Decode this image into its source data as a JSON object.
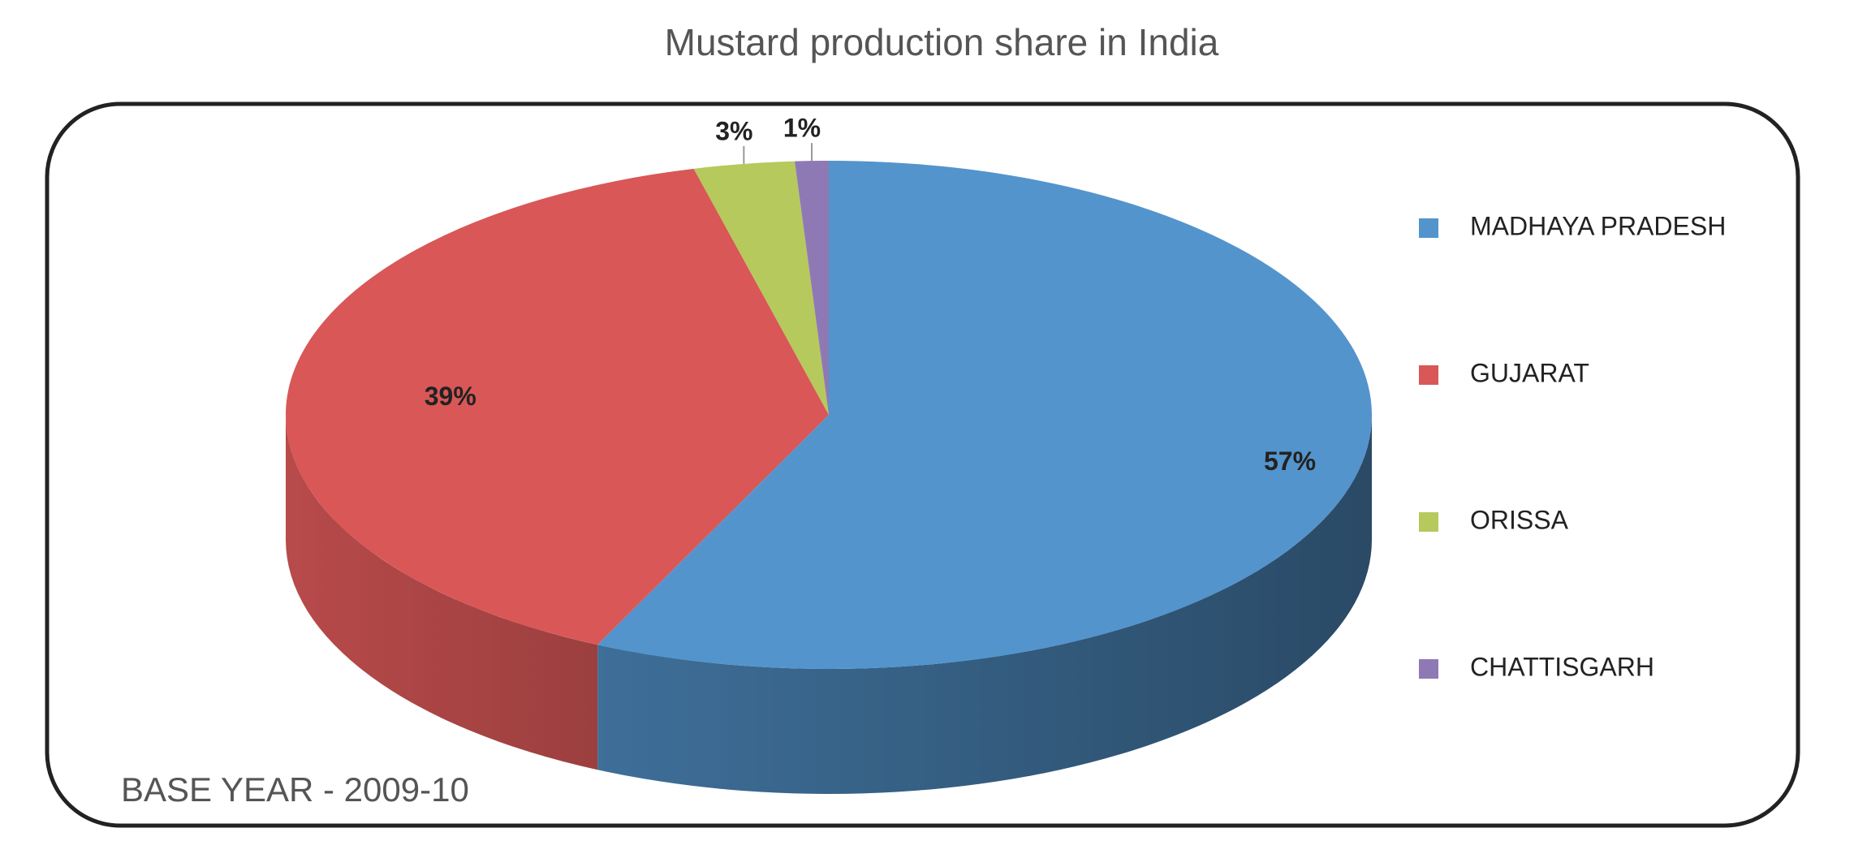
{
  "chart_data": {
    "type": "pie3d",
    "title": "Mustard production share in India",
    "annotation": "BASE YEAR - 2009-10",
    "categories": [
      "MADHAYA PRADESH",
      "GUJARAT",
      "ORISSA",
      "CHATTISGARH"
    ],
    "values": [
      57,
      39,
      3,
      1
    ],
    "value_labels": [
      "57%",
      "39%",
      "3%",
      "1%"
    ],
    "colors": [
      "#5394cc",
      "#d95757",
      "#b6c95c",
      "#8f79b5"
    ],
    "legend": "right"
  }
}
